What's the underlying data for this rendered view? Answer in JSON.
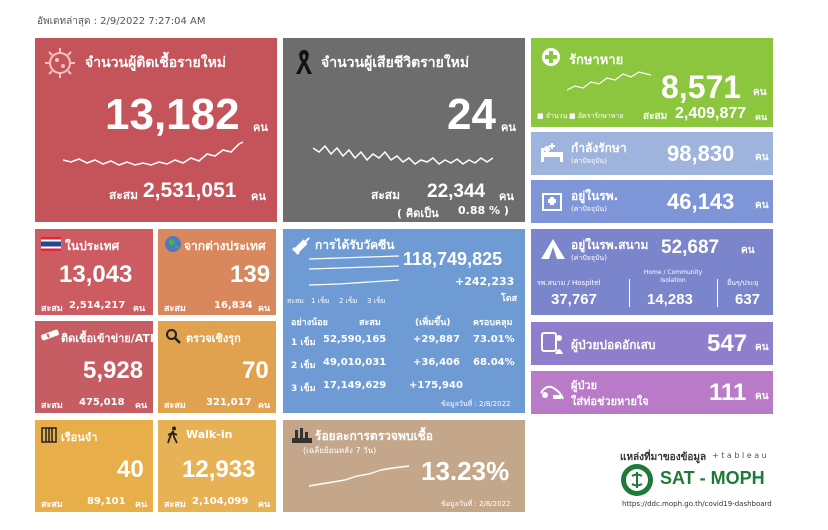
{
  "updated": "อัพเดทล่าสุด : 2/9/2022 7:27:04 AM",
  "colors": {
    "new_cases": "#c5535a",
    "deaths": "#6d6d6d",
    "recovered": "#8cc63e",
    "treating": "#9fb4dd",
    "hospital": "#7e96d8",
    "field": "#7b85cc",
    "domestic": "#cc5b62",
    "overseas": "#d9875c",
    "atk": "#c55d63",
    "proactive": "#e0a24e",
    "vaccine": "#6e9bd4",
    "positive_rate": "#c4a78a",
    "pneumonia": "#8e7ecc",
    "ventilator": "#b97ac7",
    "prison": "#e8ae4a",
    "walkin": "#e7b255"
  },
  "new_cases": {
    "title": "จำนวนผู้ติดเชื้อรายใหม่",
    "value": "13,182",
    "unit": "คน",
    "cum_label": "สะสม",
    "cum_value": "2,531,051",
    "cum_unit": "คน",
    "icon": "virus-icon"
  },
  "deaths": {
    "title": "จำนวนผู้เสียชีวิตรายใหม่",
    "value": "24",
    "unit": "คน",
    "cum_label": "สะสม",
    "cum_value": "22,344",
    "cum_unit": "คน",
    "pct_label": "( คิดเป็น",
    "pct_value": "0.88 % )",
    "icon": "ribbon-icon"
  },
  "recovered": {
    "title": "รักษาหาย",
    "value": "8,571",
    "unit": "คน",
    "legend_daily": "■ จำนวน",
    "legend_rate": "■ อัตรารักษาหาย",
    "cum_label": "สะสม",
    "cum_value": "2,409,877",
    "cum_unit": "คน",
    "icon": "plus-icon"
  },
  "treating": {
    "title": "กำลังรักษา",
    "sub": "(ค่าปัจจุบัน)",
    "value": "98,830",
    "unit": "คน",
    "icon": "bed-icon"
  },
  "hospital": {
    "title": "อยู่ในรพ.",
    "sub": "(ค่าปัจจุบัน)",
    "value": "46,143",
    "unit": "คน",
    "icon": "hospital-icon"
  },
  "field": {
    "title": "อยู่ในรพ.สนาม",
    "sub": "(ค่าปัจจุบัน)",
    "value": "52,687",
    "unit": "คน",
    "col1_label": "รพ.สนาม / Hospitel",
    "col1_value": "37,767",
    "col2_label": "Home / Community Isolation",
    "col2_value": "14,283",
    "col3_label": "อื่นๆ/ประยุ",
    "col3_value": "637",
    "icon": "tent-icon"
  },
  "domestic": {
    "title": "ในประเทศ",
    "value": "13,043",
    "cum_label": "สะสม",
    "cum_value": "2,514,217",
    "cum_unit": "คน",
    "icon": "thai-flag-icon"
  },
  "overseas": {
    "title": "จากต่างประเทศ",
    "value": "139",
    "cum_label": "สะสม",
    "cum_value": "16,834",
    "cum_unit": "คน",
    "icon": "globe-icon"
  },
  "atk": {
    "title": "ติดเชื้อเข้าข่าย/ATK",
    "value": "5,928",
    "cum_label": "สะสม",
    "cum_value": "475,018",
    "cum_unit": "คน",
    "icon": "test-kit-icon"
  },
  "proactive": {
    "title": "ตรวจเชิงรุก",
    "value": "70",
    "cum_label": "สะสม",
    "cum_value": "321,017",
    "cum_unit": "คน",
    "icon": "magnifier-icon"
  },
  "prison": {
    "title": "เรือนจำ",
    "value": "40",
    "cum_label": "สะสม",
    "cum_value": "89,101",
    "cum_unit": "คน",
    "icon": "prison-icon"
  },
  "walkin": {
    "title": "Walk-in",
    "value": "12,933",
    "cum_label": "สะสม",
    "cum_value": "2,104,099",
    "cum_unit": "คน",
    "icon": "walking-icon"
  },
  "vaccine": {
    "title": "การได้รับวัคซีน",
    "total": "118,749,825",
    "added": "+242,233",
    "dose_unit": "โดส",
    "legend_label": "สะสม",
    "legend_1": "1 เข็ม",
    "legend_2": "2 เข็ม",
    "legend_3": "3 เข็ม",
    "headers": [
      "อย่างน้อย",
      "สะสม",
      "(เพิ่มขึ้น)",
      "ครอบคลุม"
    ],
    "rows": [
      {
        "dose": "1 เข็ม",
        "cum": "52,590,165",
        "inc": "+29,887",
        "cov": "73.01%"
      },
      {
        "dose": "2 เข็ม",
        "cum": "49,010,031",
        "inc": "+36,406",
        "cov": "68.04%"
      },
      {
        "dose": "3 เข็ม",
        "cum": "17,149,629",
        "inc": "+175,940",
        "cov": ""
      }
    ],
    "date": "ข้อมูลวันที่ : 2/8/2022",
    "icon": "syringe-icon"
  },
  "positive_rate": {
    "title": "ร้อยละการตรวจพบเชื้อ",
    "sub": "(เฉลี่ยย้อนหลัง 7 วัน)",
    "value": "13.23%",
    "date": "ข้อมูลวันที่ : 2/8/2022",
    "icon": "lab-icon"
  },
  "pneumonia": {
    "title": "ผู้ป่วยปอดอักเสบ",
    "value": "547",
    "unit": "คน",
    "icon": "lungs-icon"
  },
  "ventilator": {
    "title": "ผู้ป่วย",
    "title2": "ใส่ท่อช่วยหายใจ",
    "value": "111",
    "unit": "คน",
    "icon": "ventilator-icon"
  },
  "source": {
    "label": "แหล่งที่มาของข้อมูล",
    "tableau": "+ t a b l e a u",
    "brand": "SAT - MOPH",
    "url": "https://ddc.moph.go.th/covid19-dashboard",
    "icon": "moph-logo-icon"
  }
}
